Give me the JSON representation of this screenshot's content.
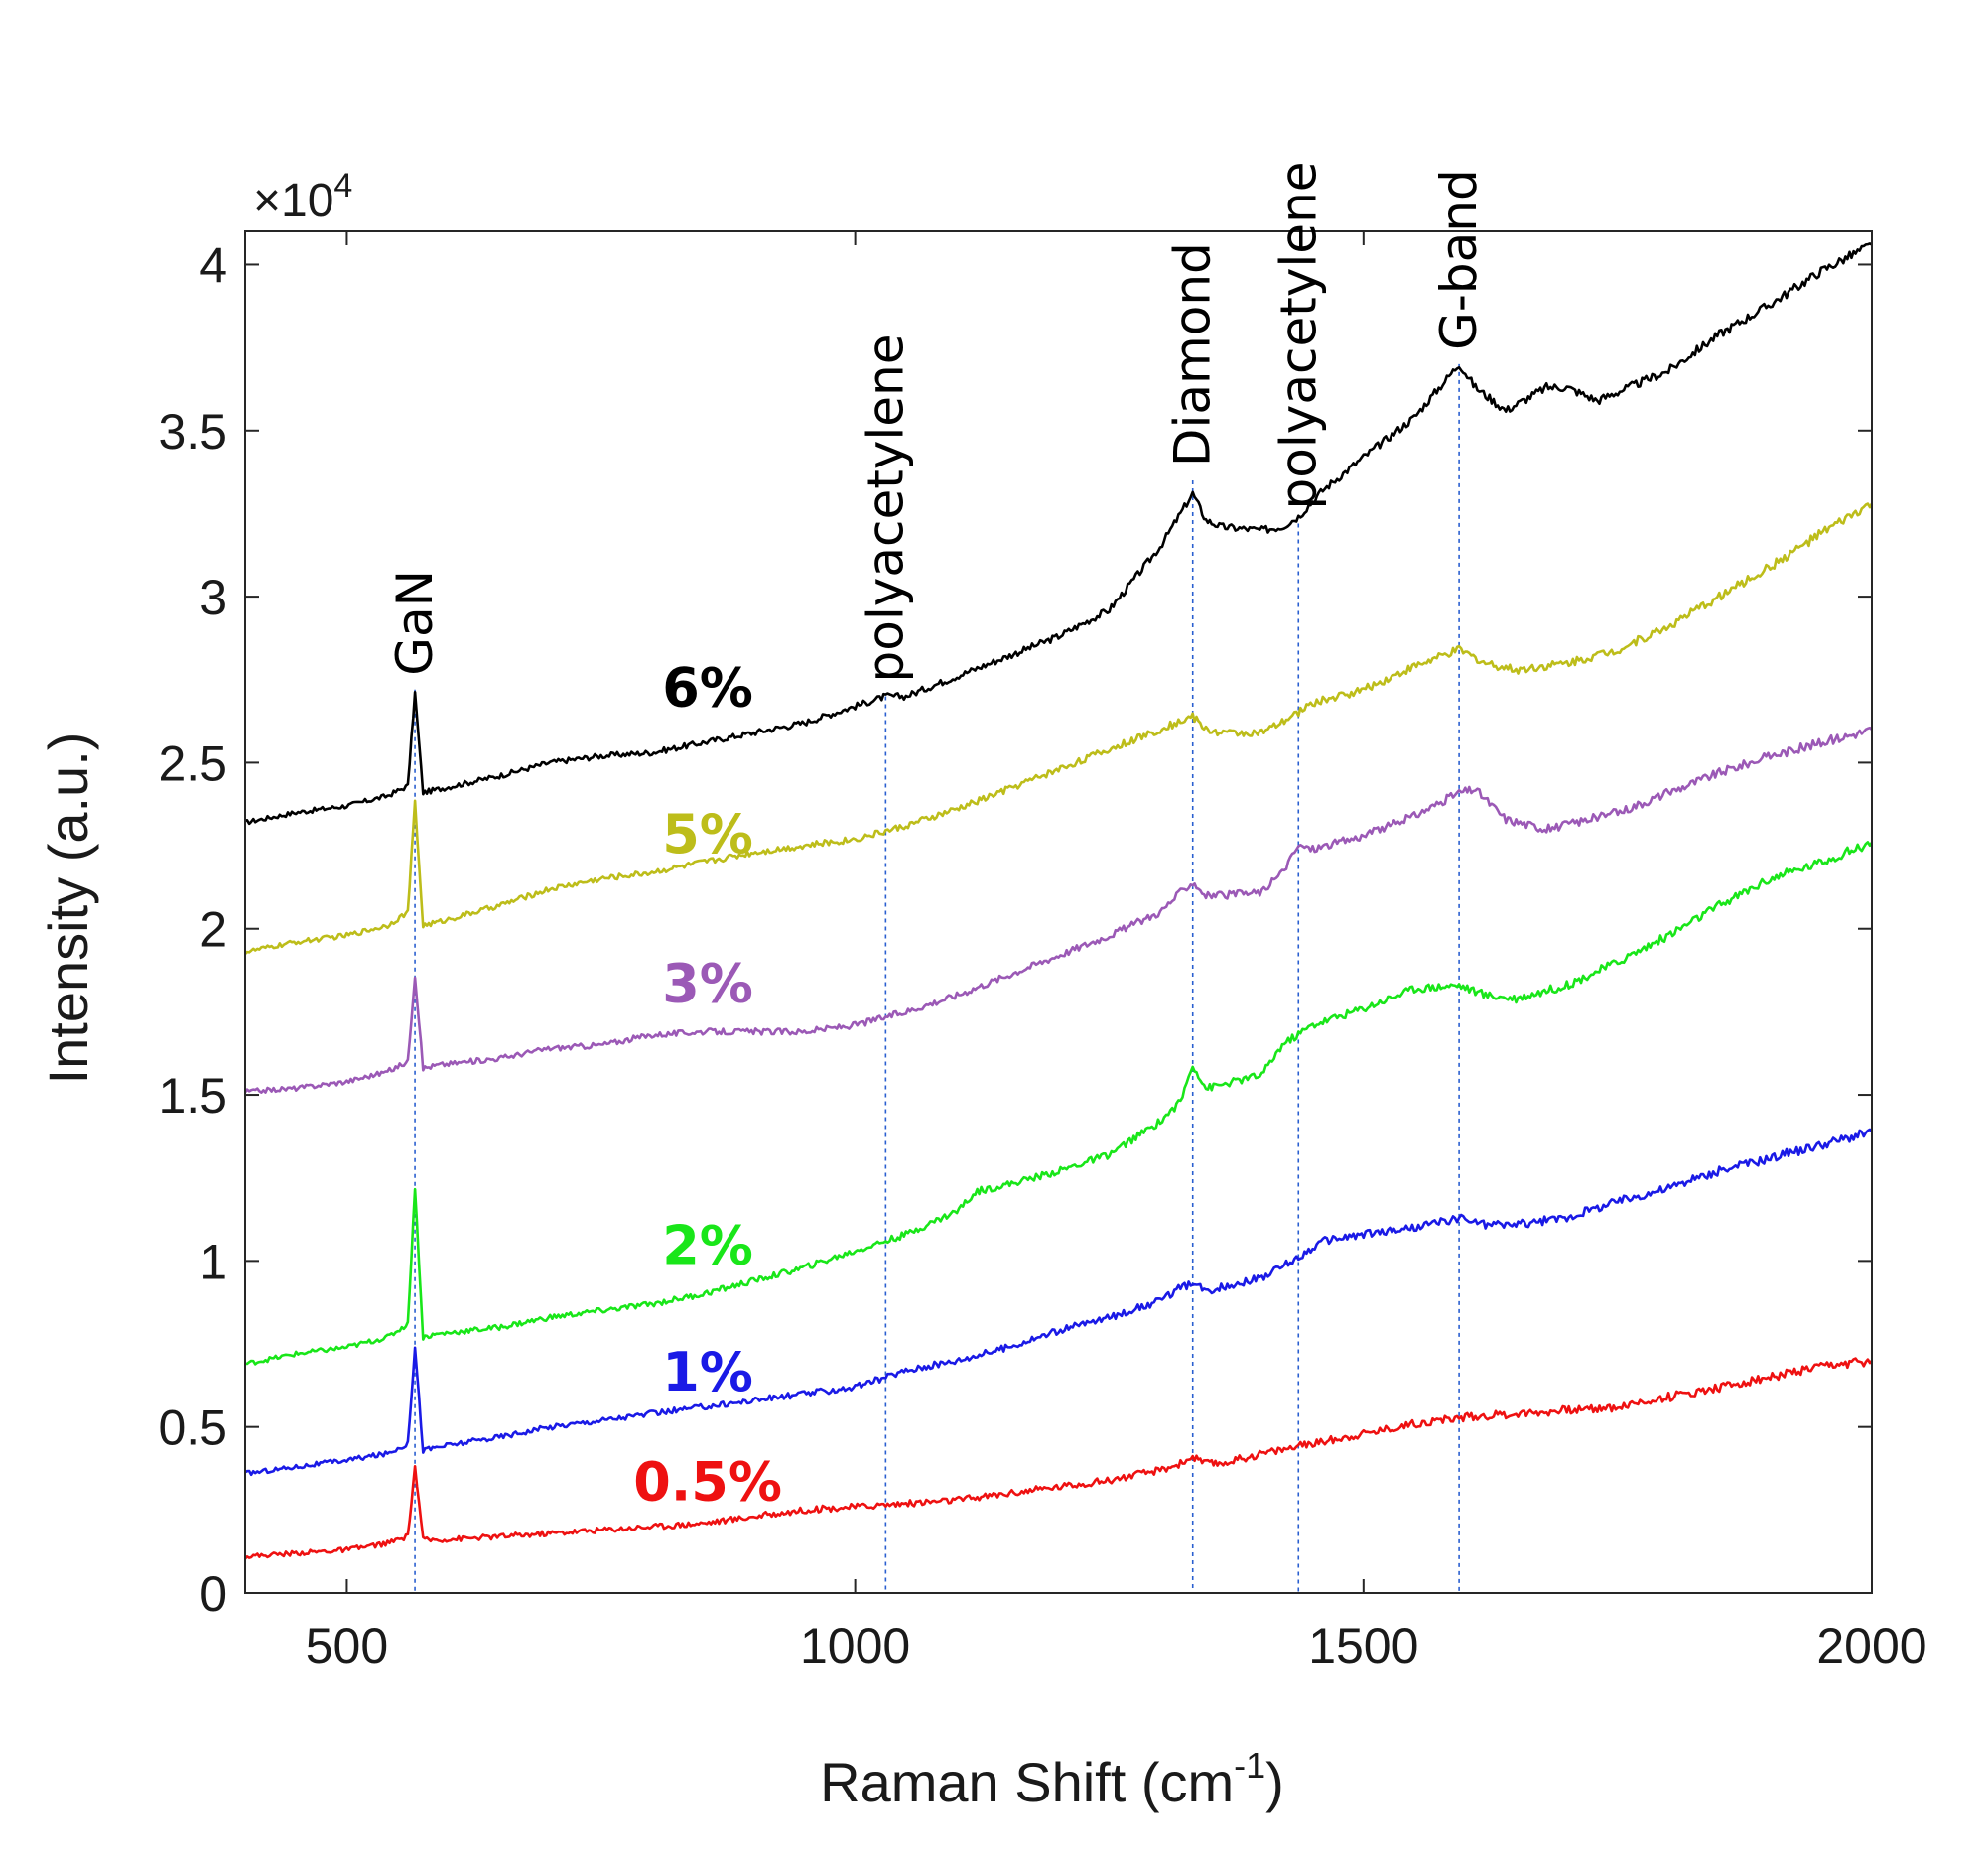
{
  "chart_data": {
    "type": "line",
    "title": "",
    "xlabel_main": "Raman Shift (cm",
    "xlabel_sup": "-1",
    "xlabel_close": ")",
    "ylabel": "Intensity (a.u.)",
    "xlim": [
      400,
      2000
    ],
    "ylim": [
      0,
      41000
    ],
    "x_ticks": [
      500,
      1000,
      1500,
      2000
    ],
    "x_tick_labels": [
      "500",
      "1000",
      "1500",
      "2000"
    ],
    "y_ticks": [
      0,
      5000,
      10000,
      15000,
      20000,
      25000,
      30000,
      35000,
      40000
    ],
    "y_tick_labels": [
      "0",
      "0.5",
      "1",
      "1.5",
      "2",
      "2.5",
      "3",
      "3.5",
      "4"
    ],
    "y_multiplier_prefix": "×10",
    "y_multiplier_exp": "4",
    "grid": false,
    "legend": "inline labels on curves",
    "annotations": [
      {
        "label": "GaN",
        "x": 567,
        "line_top": 27200
      },
      {
        "label": "polyacetylene",
        "x": 1030,
        "line_top": 27000
      },
      {
        "label": "Diamond",
        "x": 1332,
        "line_top": 33500
      },
      {
        "label": "polyacetylene",
        "x": 1436,
        "line_top": 32200
      },
      {
        "label": "G-band",
        "x": 1594,
        "line_top": 37000
      }
    ],
    "series": [
      {
        "name": "6%",
        "color": "#000000",
        "label_x": 855,
        "label_y": 26700,
        "x": [
          400,
          450,
          500,
          540,
          560,
          567,
          575,
          590,
          650,
          700,
          750,
          800,
          850,
          900,
          950,
          1000,
          1030,
          1050,
          1100,
          1150,
          1200,
          1250,
          1300,
          1320,
          1332,
          1345,
          1360,
          1400,
          1420,
          1436,
          1460,
          1500,
          1550,
          1594,
          1610,
          1640,
          1680,
          1700,
          1730,
          1800,
          1850,
          1900,
          1950,
          2000
        ],
        "values": [
          23200,
          23500,
          23700,
          24000,
          24300,
          27100,
          24100,
          24200,
          24600,
          25000,
          25200,
          25300,
          25600,
          25900,
          26200,
          26700,
          27000,
          27000,
          27600,
          28200,
          28800,
          29600,
          31500,
          32500,
          33100,
          32300,
          32100,
          32000,
          32100,
          32400,
          33200,
          34200,
          35400,
          37000,
          36300,
          35600,
          36300,
          36300,
          35900,
          36800,
          37900,
          38800,
          39800,
          40600
        ]
      },
      {
        "name": "5%",
        "color": "#bdbd1a",
        "label_x": 855,
        "label_y": 22300,
        "x": [
          400,
          450,
          500,
          540,
          560,
          567,
          575,
          590,
          650,
          700,
          750,
          800,
          850,
          900,
          950,
          1000,
          1050,
          1100,
          1150,
          1200,
          1250,
          1300,
          1332,
          1345,
          1360,
          1400,
          1420,
          1450,
          1500,
          1550,
          1594,
          1620,
          1650,
          1700,
          1750,
          1800,
          1850,
          1900,
          1950,
          2000
        ],
        "values": [
          19300,
          19600,
          19800,
          20100,
          20500,
          23800,
          20100,
          20200,
          20700,
          21200,
          21500,
          21700,
          22000,
          22300,
          22500,
          22700,
          23100,
          23600,
          24200,
          24800,
          25400,
          26000,
          26400,
          26000,
          25900,
          25900,
          26200,
          26800,
          27200,
          27900,
          28400,
          28000,
          27800,
          28000,
          28400,
          29100,
          30000,
          30900,
          31900,
          32800
        ]
      },
      {
        "name": "3%",
        "color": "#9b59b6",
        "label_x": 855,
        "label_y": 17800,
        "x": [
          400,
          450,
          500,
          540,
          560,
          567,
          575,
          590,
          650,
          700,
          750,
          800,
          850,
          900,
          950,
          1000,
          1050,
          1100,
          1150,
          1200,
          1250,
          1300,
          1320,
          1332,
          1345,
          1360,
          1400,
          1420,
          1436,
          1450,
          1500,
          1550,
          1594,
          1610,
          1640,
          1680,
          1750,
          1800,
          1850,
          1900,
          1950,
          2000
        ],
        "values": [
          15100,
          15200,
          15400,
          15700,
          16000,
          18600,
          15800,
          15900,
          16100,
          16400,
          16500,
          16800,
          16900,
          16900,
          16900,
          17100,
          17500,
          18000,
          18600,
          19200,
          19800,
          20500,
          21100,
          21400,
          21000,
          21000,
          21100,
          21700,
          22500,
          22400,
          22800,
          23400,
          24100,
          24200,
          23300,
          23000,
          23500,
          24100,
          24700,
          25200,
          25600,
          26000
        ]
      },
      {
        "name": "2%",
        "color": "#19e619",
        "label_x": 855,
        "label_y": 9900,
        "x": [
          400,
          450,
          500,
          540,
          560,
          567,
          575,
          590,
          650,
          700,
          750,
          800,
          850,
          900,
          950,
          1000,
          1050,
          1100,
          1120,
          1150,
          1200,
          1250,
          1300,
          1320,
          1332,
          1345,
          1360,
          1400,
          1420,
          1450,
          1500,
          1550,
          1594,
          1620,
          1650,
          1700,
          1750,
          1800,
          1850,
          1900,
          1950,
          2000
        ],
        "values": [
          6900,
          7200,
          7400,
          7700,
          8100,
          12200,
          7700,
          7800,
          8000,
          8300,
          8500,
          8700,
          9000,
          9400,
          9800,
          10300,
          10800,
          11500,
          12100,
          12300,
          12700,
          13200,
          14200,
          14800,
          15900,
          15200,
          15300,
          15600,
          16500,
          17100,
          17600,
          18200,
          18300,
          18000,
          17900,
          18300,
          19000,
          19800,
          20700,
          21500,
          22000,
          22600
        ]
      },
      {
        "name": "1%",
        "color": "#1a1ae6",
        "label_x": 855,
        "label_y": 6100,
        "x": [
          400,
          450,
          500,
          540,
          560,
          567,
          575,
          590,
          650,
          700,
          750,
          800,
          850,
          900,
          950,
          1000,
          1050,
          1100,
          1150,
          1200,
          1250,
          1300,
          1320,
          1332,
          1345,
          1360,
          1400,
          1436,
          1460,
          1500,
          1550,
          1594,
          1620,
          1650,
          1700,
          1750,
          1800,
          1850,
          1900,
          1950,
          2000
        ],
        "values": [
          3600,
          3800,
          4000,
          4200,
          4500,
          7400,
          4300,
          4400,
          4700,
          5000,
          5200,
          5400,
          5600,
          5800,
          6000,
          6200,
          6700,
          7000,
          7400,
          7900,
          8300,
          8800,
          9200,
          9300,
          9100,
          9200,
          9500,
          10100,
          10600,
          10800,
          11000,
          11300,
          11100,
          11100,
          11300,
          11800,
          12200,
          12700,
          13100,
          13500,
          13900
        ]
      },
      {
        "name": "0.5%",
        "color": "#ee1111",
        "label_x": 855,
        "label_y": 2800,
        "x": [
          400,
          450,
          500,
          540,
          560,
          567,
          575,
          590,
          650,
          700,
          750,
          800,
          850,
          900,
          950,
          1000,
          1050,
          1100,
          1150,
          1200,
          1250,
          1300,
          1320,
          1332,
          1345,
          1360,
          1400,
          1450,
          1500,
          1550,
          1600,
          1650,
          1700,
          1750,
          1800,
          1850,
          1900,
          1950,
          2000
        ],
        "values": [
          1100,
          1200,
          1300,
          1500,
          1700,
          3800,
          1600,
          1600,
          1700,
          1800,
          1900,
          2000,
          2100,
          2300,
          2500,
          2600,
          2700,
          2800,
          3000,
          3200,
          3400,
          3700,
          3900,
          4100,
          3900,
          3900,
          4200,
          4500,
          4800,
          5100,
          5300,
          5400,
          5500,
          5600,
          5900,
          6200,
          6500,
          6800,
          7000
        ]
      }
    ]
  }
}
